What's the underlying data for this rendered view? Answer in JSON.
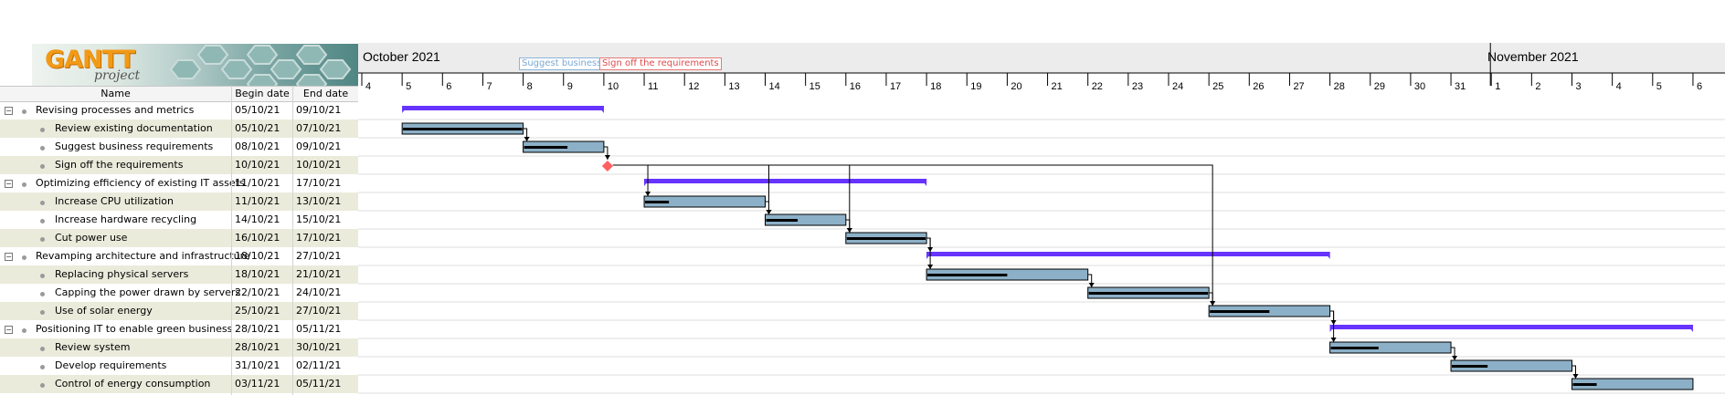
{
  "app": {
    "logo_text_main": "GANTT",
    "logo_text_sub": "project"
  },
  "table": {
    "headers": {
      "name": "Name",
      "begin": "Begin date",
      "end": "End date"
    },
    "rows": [
      {
        "name": "Revising processes and metrics",
        "begin": "05/10/21",
        "end": "09/10/21",
        "level": 0,
        "type": "group",
        "start_day": 5,
        "end_day": 10
      },
      {
        "name": "Review existing documentation",
        "begin": "05/10/21",
        "end": "07/10/21",
        "level": 1,
        "type": "task",
        "start_day": 5,
        "end_day": 8,
        "progress": 1.0
      },
      {
        "name": "Suggest business requirements",
        "begin": "08/10/21",
        "end": "09/10/21",
        "level": 1,
        "type": "task",
        "start_day": 8,
        "end_day": 10,
        "progress": 0.55
      },
      {
        "name": "Sign off the requirements",
        "begin": "10/10/21",
        "end": "10/10/21",
        "level": 1,
        "type": "milestone",
        "start_day": 10,
        "end_day": 10
      },
      {
        "name": "Optimizing efficiency of existing IT assets",
        "begin": "11/10/21",
        "end": "17/10/21",
        "level": 0,
        "type": "group",
        "start_day": 11,
        "end_day": 18
      },
      {
        "name": "Increase CPU utilization",
        "begin": "11/10/21",
        "end": "13/10/21",
        "level": 1,
        "type": "task",
        "start_day": 11,
        "end_day": 14,
        "progress": 0.2
      },
      {
        "name": "Increase hardware recycling",
        "begin": "14/10/21",
        "end": "15/10/21",
        "level": 1,
        "type": "task",
        "start_day": 14,
        "end_day": 16,
        "progress": 0.4
      },
      {
        "name": "Cut power use",
        "begin": "16/10/21",
        "end": "17/10/21",
        "level": 1,
        "type": "task",
        "start_day": 16,
        "end_day": 18,
        "progress": 1.0
      },
      {
        "name": "Revamping architecture and infrastructure",
        "begin": "18/10/21",
        "end": "27/10/21",
        "level": 0,
        "type": "group",
        "start_day": 18,
        "end_day": 28
      },
      {
        "name": "Replacing physical servers",
        "begin": "18/10/21",
        "end": "21/10/21",
        "level": 1,
        "type": "task",
        "start_day": 18,
        "end_day": 22,
        "progress": 0.5
      },
      {
        "name": "Capping the power drawn by servers",
        "begin": "22/10/21",
        "end": "24/10/21",
        "level": 1,
        "type": "task",
        "start_day": 22,
        "end_day": 25,
        "progress": 1.0
      },
      {
        "name": "Use of solar energy",
        "begin": "25/10/21",
        "end": "27/10/21",
        "level": 1,
        "type": "task",
        "start_day": 25,
        "end_day": 28,
        "progress": 0.5
      },
      {
        "name": "Positioning IT to enable green business",
        "begin": "28/10/21",
        "end": "05/11/21",
        "level": 0,
        "type": "group",
        "start_day": 28,
        "end_day": 37
      },
      {
        "name": "Review system",
        "begin": "28/10/21",
        "end": "30/10/21",
        "level": 1,
        "type": "task",
        "start_day": 28,
        "end_day": 31,
        "progress": 0.4
      },
      {
        "name": "Develop requirements",
        "begin": "31/10/21",
        "end": "02/11/21",
        "level": 1,
        "type": "task",
        "start_day": 31,
        "end_day": 34,
        "progress": 0.3
      },
      {
        "name": "Control of energy consumption",
        "begin": "03/11/21",
        "end": "05/11/21",
        "level": 1,
        "type": "task",
        "start_day": 34,
        "end_day": 37,
        "progress": 0.2
      }
    ]
  },
  "timeline": {
    "months": [
      "October 2021",
      "November 2021"
    ],
    "days": [
      "4",
      "5",
      "6",
      "7",
      "8",
      "9",
      "10",
      "11",
      "12",
      "13",
      "14",
      "15",
      "16",
      "17",
      "18",
      "19",
      "20",
      "21",
      "22",
      "23",
      "24",
      "25",
      "26",
      "27",
      "28",
      "29",
      "30",
      "31",
      "1",
      "2",
      "3",
      "4",
      "5",
      "6"
    ],
    "flags": {
      "suggest": "Suggest business requirements",
      "signoff": "Sign off the requirements"
    },
    "dependencies": [
      [
        1,
        2
      ],
      [
        2,
        3
      ],
      [
        3,
        5
      ],
      [
        5,
        6
      ],
      [
        6,
        7
      ],
      [
        7,
        9
      ],
      [
        9,
        10
      ],
      [
        10,
        11
      ],
      [
        11,
        13
      ],
      [
        13,
        14
      ],
      [
        14,
        15
      ],
      [
        3,
        6
      ],
      [
        3,
        7
      ],
      [
        3,
        11
      ],
      [
        7,
        8
      ],
      [
        11,
        12
      ]
    ]
  },
  "colors": {
    "task_fill": "#8cb0c7",
    "group_bar": "#6633ff",
    "milestone": "#ff6060",
    "row_alt": "#ebebdc",
    "progress": "#000000"
  }
}
